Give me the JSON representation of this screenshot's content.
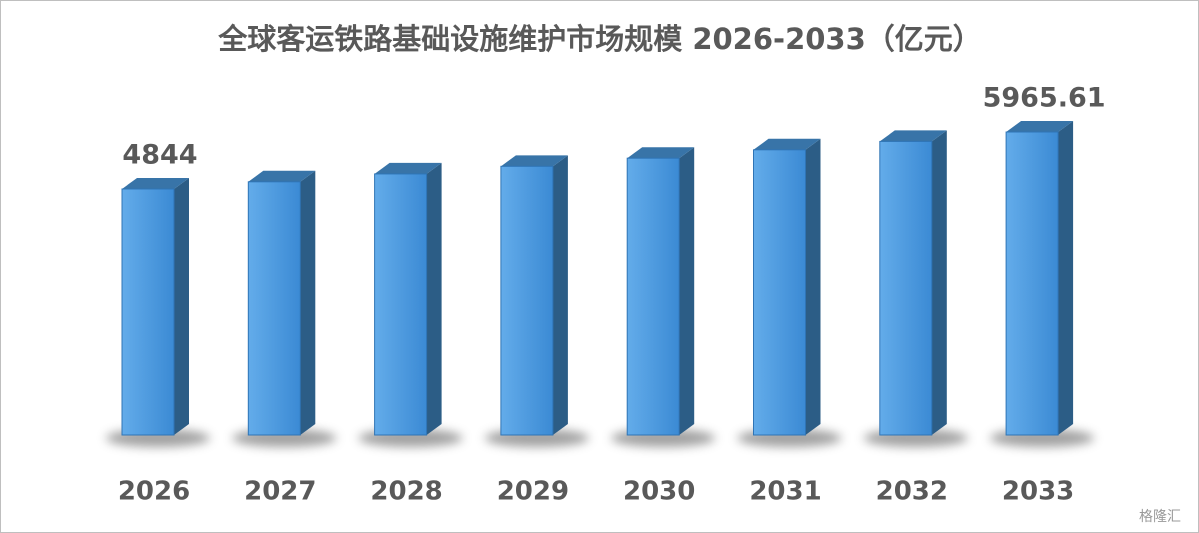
{
  "chart_data": {
    "type": "bar3d",
    "title": "全球客运铁路基础设施维护市场规模 2026-2033（亿元）",
    "categories": [
      "2026",
      "2027",
      "2028",
      "2029",
      "2030",
      "2031",
      "2032",
      "2033"
    ],
    "values": [
      4844,
      4985,
      5140,
      5290,
      5450,
      5615,
      5780,
      5965.61
    ],
    "value_labels": [
      "4844",
      null,
      null,
      null,
      null,
      null,
      null,
      "5965.61"
    ],
    "color": "#4a9be0",
    "watermark": "格隆汇"
  }
}
